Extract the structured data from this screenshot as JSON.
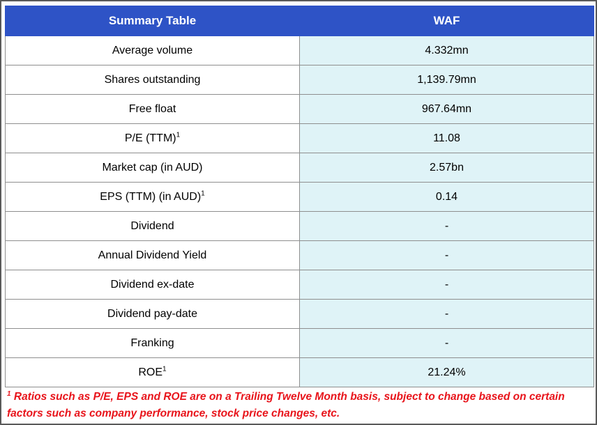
{
  "table": {
    "header": {
      "col1": "Summary Table",
      "col2": "WAF"
    },
    "rows": [
      {
        "label": "Average volume",
        "sup": "",
        "value": "4.332mn"
      },
      {
        "label": "Shares outstanding",
        "sup": "",
        "value": "1,139.79mn"
      },
      {
        "label": "Free float",
        "sup": "",
        "value": "967.64mn"
      },
      {
        "label": "P/E (TTM)",
        "sup": "1",
        "value": "11.08"
      },
      {
        "label": "Market cap (in AUD)",
        "sup": "",
        "value": "2.57bn"
      },
      {
        "label": "EPS (TTM) (in AUD)",
        "sup": "1",
        "value": "0.14"
      },
      {
        "label": "Dividend",
        "sup": "",
        "value": "-"
      },
      {
        "label": "Annual Dividend Yield",
        "sup": "",
        "value": "-"
      },
      {
        "label": "Dividend ex-date",
        "sup": "",
        "value": "-"
      },
      {
        "label": "Dividend pay-date",
        "sup": "",
        "value": "-"
      },
      {
        "label": "Franking",
        "sup": "",
        "value": "-"
      },
      {
        "label": "ROE",
        "sup": "1",
        "value": "21.24%"
      }
    ]
  },
  "footnote": {
    "marker": "1",
    "text": " Ratios such as P/E, EPS and ROE are on a Trailing Twelve Month basis, subject to change based on certain factors such as company performance, stock price changes, etc."
  },
  "colors": {
    "header_bg": "#2e53c6",
    "value_bg": "#dff3f7",
    "footnote_text": "#e8141b"
  }
}
